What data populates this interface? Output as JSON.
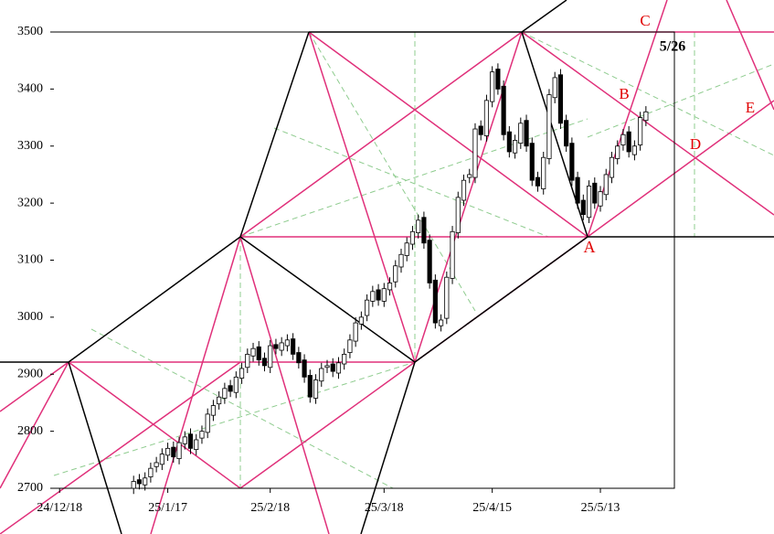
{
  "chart_data": {
    "type": "candlestick",
    "xlim": [
      -1,
      108
    ],
    "xticks": [
      {
        "value": 0,
        "label": "24/12/18"
      },
      {
        "value": 19,
        "label": "25/1/17"
      },
      {
        "value": 37,
        "label": "25/2/18"
      },
      {
        "value": 57,
        "label": "25/3/18"
      },
      {
        "value": 76,
        "label": "25/4/15"
      },
      {
        "value": 95,
        "label": "25/5/13"
      }
    ],
    "ylim": [
      2700,
      3500
    ],
    "yticks": [
      2700,
      2800,
      2900,
      3000,
      3100,
      3200,
      3300,
      3400,
      3500
    ],
    "up_color": "#ffffff",
    "down_color": "#000000",
    "x": [
      13,
      14,
      15,
      16,
      17,
      18,
      19,
      20,
      21,
      22,
      23,
      24,
      25,
      26,
      27,
      28,
      29,
      30,
      31,
      32,
      33,
      34,
      35,
      36,
      37,
      38,
      39,
      40,
      41,
      42,
      43,
      44,
      45,
      46,
      47,
      48,
      49,
      50,
      51,
      52,
      53,
      54,
      55,
      56,
      57,
      58,
      59,
      60,
      61,
      62,
      63,
      64,
      65,
      66,
      67,
      68,
      69,
      70,
      71,
      72,
      73,
      74,
      75,
      76,
      77,
      78,
      79,
      80,
      81,
      82,
      83,
      84,
      85,
      86,
      87,
      88,
      89,
      90,
      91,
      92,
      93,
      94,
      95,
      96,
      97,
      98,
      99,
      100,
      101,
      102,
      103
    ],
    "open": [
      2700,
      2715,
      2706,
      2720,
      2738,
      2742,
      2758,
      2772,
      2752,
      2778,
      2795,
      2768,
      2788,
      2798,
      2828,
      2848,
      2858,
      2880,
      2868,
      2893,
      2912,
      2932,
      2948,
      2928,
      2912,
      2952,
      2942,
      2950,
      2962,
      2938,
      2925,
      2898,
      2858,
      2888,
      2912,
      2918,
      2902,
      2918,
      2938,
      2958,
      2988,
      3003,
      3028,
      3048,
      3028,
      3048,
      3062,
      3088,
      3108,
      3128,
      3148,
      3175,
      3135,
      3065,
      2985,
      2998,
      3068,
      3148,
      3205,
      3245,
      3245,
      3335,
      3318,
      3378,
      3435,
      3405,
      3325,
      3288,
      3305,
      3345,
      3305,
      3245,
      3225,
      3278,
      3385,
      3425,
      3345,
      3305,
      3245,
      3205,
      3175,
      3235,
      3195,
      3215,
      3245,
      3278,
      3302,
      3325,
      3285,
      3302,
      3345
    ],
    "high": [
      2722,
      2725,
      2728,
      2745,
      2755,
      2770,
      2780,
      2782,
      2790,
      2800,
      2805,
      2795,
      2810,
      2840,
      2855,
      2870,
      2885,
      2890,
      2905,
      2920,
      2945,
      2955,
      2958,
      2938,
      2960,
      2962,
      2965,
      2970,
      2972,
      2948,
      2935,
      2908,
      2900,
      2920,
      2925,
      2928,
      2930,
      2945,
      2970,
      3000,
      3010,
      3040,
      3055,
      3058,
      3060,
      3070,
      3100,
      3120,
      3140,
      3160,
      3180,
      3185,
      3145,
      3075,
      3005,
      3080,
      3160,
      3220,
      3250,
      3260,
      3340,
      3345,
      3390,
      3440,
      3445,
      3415,
      3335,
      3320,
      3350,
      3355,
      3315,
      3255,
      3290,
      3400,
      3430,
      3435,
      3355,
      3315,
      3255,
      3215,
      3240,
      3245,
      3230,
      3260,
      3290,
      3310,
      3330,
      3335,
      3310,
      3360,
      3370
    ],
    "low": [
      2690,
      2698,
      2696,
      2710,
      2728,
      2732,
      2748,
      2745,
      2742,
      2768,
      2760,
      2758,
      2778,
      2788,
      2818,
      2838,
      2848,
      2860,
      2858,
      2883,
      2902,
      2922,
      2915,
      2905,
      2902,
      2935,
      2932,
      2940,
      2925,
      2910,
      2885,
      2850,
      2848,
      2878,
      2902,
      2895,
      2892,
      2908,
      2928,
      2948,
      2978,
      2993,
      3018,
      3020,
      3018,
      3038,
      3052,
      3078,
      3098,
      3118,
      3138,
      3120,
      3050,
      2980,
      2975,
      2988,
      3058,
      3138,
      3195,
      3235,
      3235,
      3310,
      3308,
      3368,
      3390,
      3310,
      3280,
      3278,
      3295,
      3290,
      3230,
      3220,
      3215,
      3268,
      3375,
      3330,
      3290,
      3230,
      3190,
      3170,
      3165,
      3190,
      3185,
      3205,
      3235,
      3268,
      3292,
      3280,
      3275,
      3292,
      3335
    ],
    "close": [
      2712,
      2708,
      2718,
      2735,
      2745,
      2760,
      2770,
      2755,
      2780,
      2790,
      2770,
      2785,
      2800,
      2830,
      2845,
      2860,
      2875,
      2870,
      2895,
      2910,
      2935,
      2945,
      2925,
      2915,
      2950,
      2945,
      2955,
      2960,
      2935,
      2920,
      2895,
      2860,
      2890,
      2910,
      2915,
      2905,
      2920,
      2935,
      2960,
      2990,
      3000,
      3030,
      3045,
      3030,
      3050,
      3060,
      3090,
      3110,
      3130,
      3150,
      3170,
      3130,
      3060,
      2990,
      2995,
      3070,
      3150,
      3210,
      3240,
      3250,
      3330,
      3320,
      3380,
      3430,
      3400,
      3320,
      3290,
      3310,
      3340,
      3300,
      3240,
      3230,
      3280,
      3390,
      3420,
      3340,
      3300,
      3240,
      3200,
      3180,
      3230,
      3200,
      3220,
      3250,
      3280,
      3300,
      3320,
      3290,
      3300,
      3350,
      3360
    ],
    "annotations": [
      {
        "text": "A",
        "color": "#e00000"
      },
      {
        "text": "B",
        "color": "#e00000"
      },
      {
        "text": "C",
        "color": "#e00000"
      },
      {
        "text": "D",
        "color": "#e00000"
      },
      {
        "text": "E",
        "color": "#e00000"
      },
      {
        "text": "5/26",
        "color": "#000000"
      }
    ]
  }
}
